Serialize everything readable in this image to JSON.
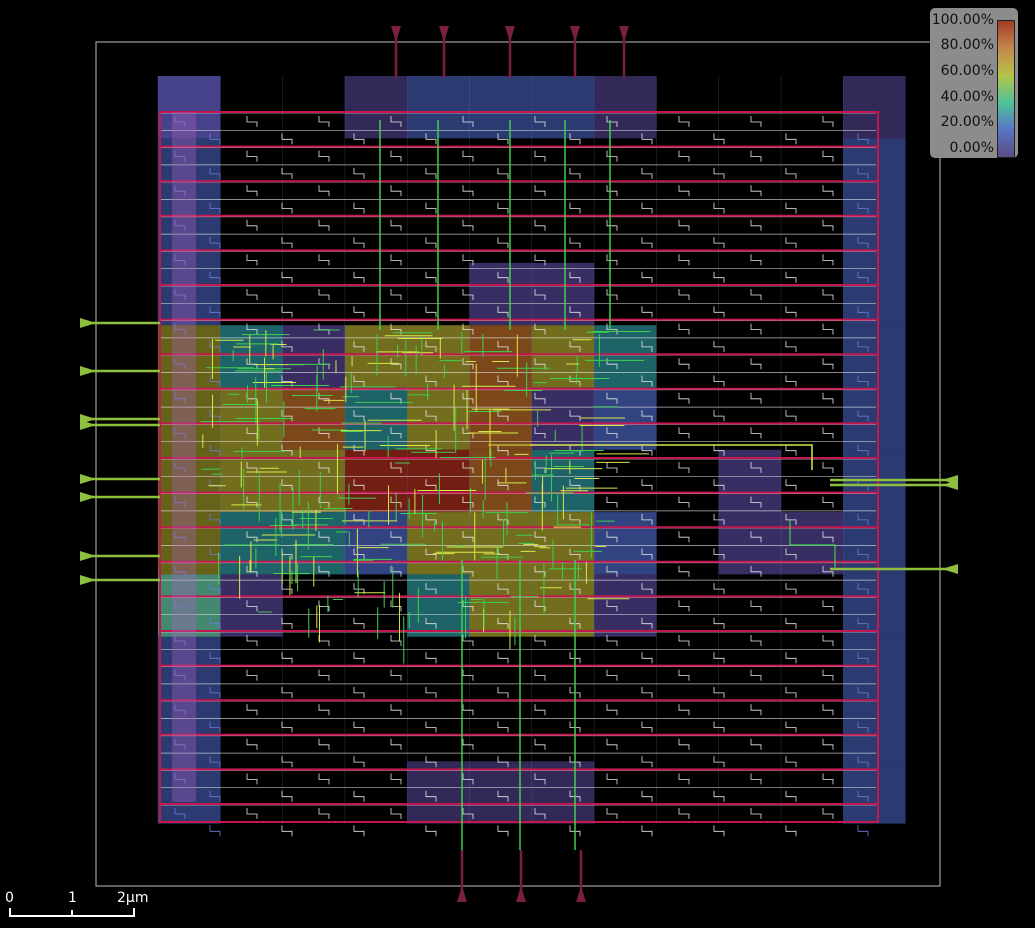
{
  "view": {
    "title": "",
    "die_outline_color": "#bfbfbf",
    "background": "#000000"
  },
  "heatmap_legend": {
    "labels": [
      "100.00%",
      "80.00%",
      "60.00%",
      "40.00%",
      "20.00%",
      "0.00%"
    ],
    "gradient_stops": [
      "#a63a2a",
      "#c4884a",
      "#b6c44a",
      "#4ec29a",
      "#5a74c4",
      "#5c4a82"
    ]
  },
  "scale_bar": {
    "ticks": [
      "0",
      "1",
      "2μm"
    ]
  },
  "colors": {
    "power_rail": "#c2184f",
    "pin_input": "#8fbf3f",
    "pin_io": "#7a1f3d",
    "route_green": "#3fcf4f",
    "route_yellow": "#d9e84a",
    "cell_outline": "#e8e8e8",
    "cell_blue": "#6c7fd9"
  },
  "heatmap": {
    "description_levels": "cell density map rendered as colored tiles",
    "levels_percent": [
      0,
      20,
      40,
      60,
      80,
      100
    ]
  }
}
